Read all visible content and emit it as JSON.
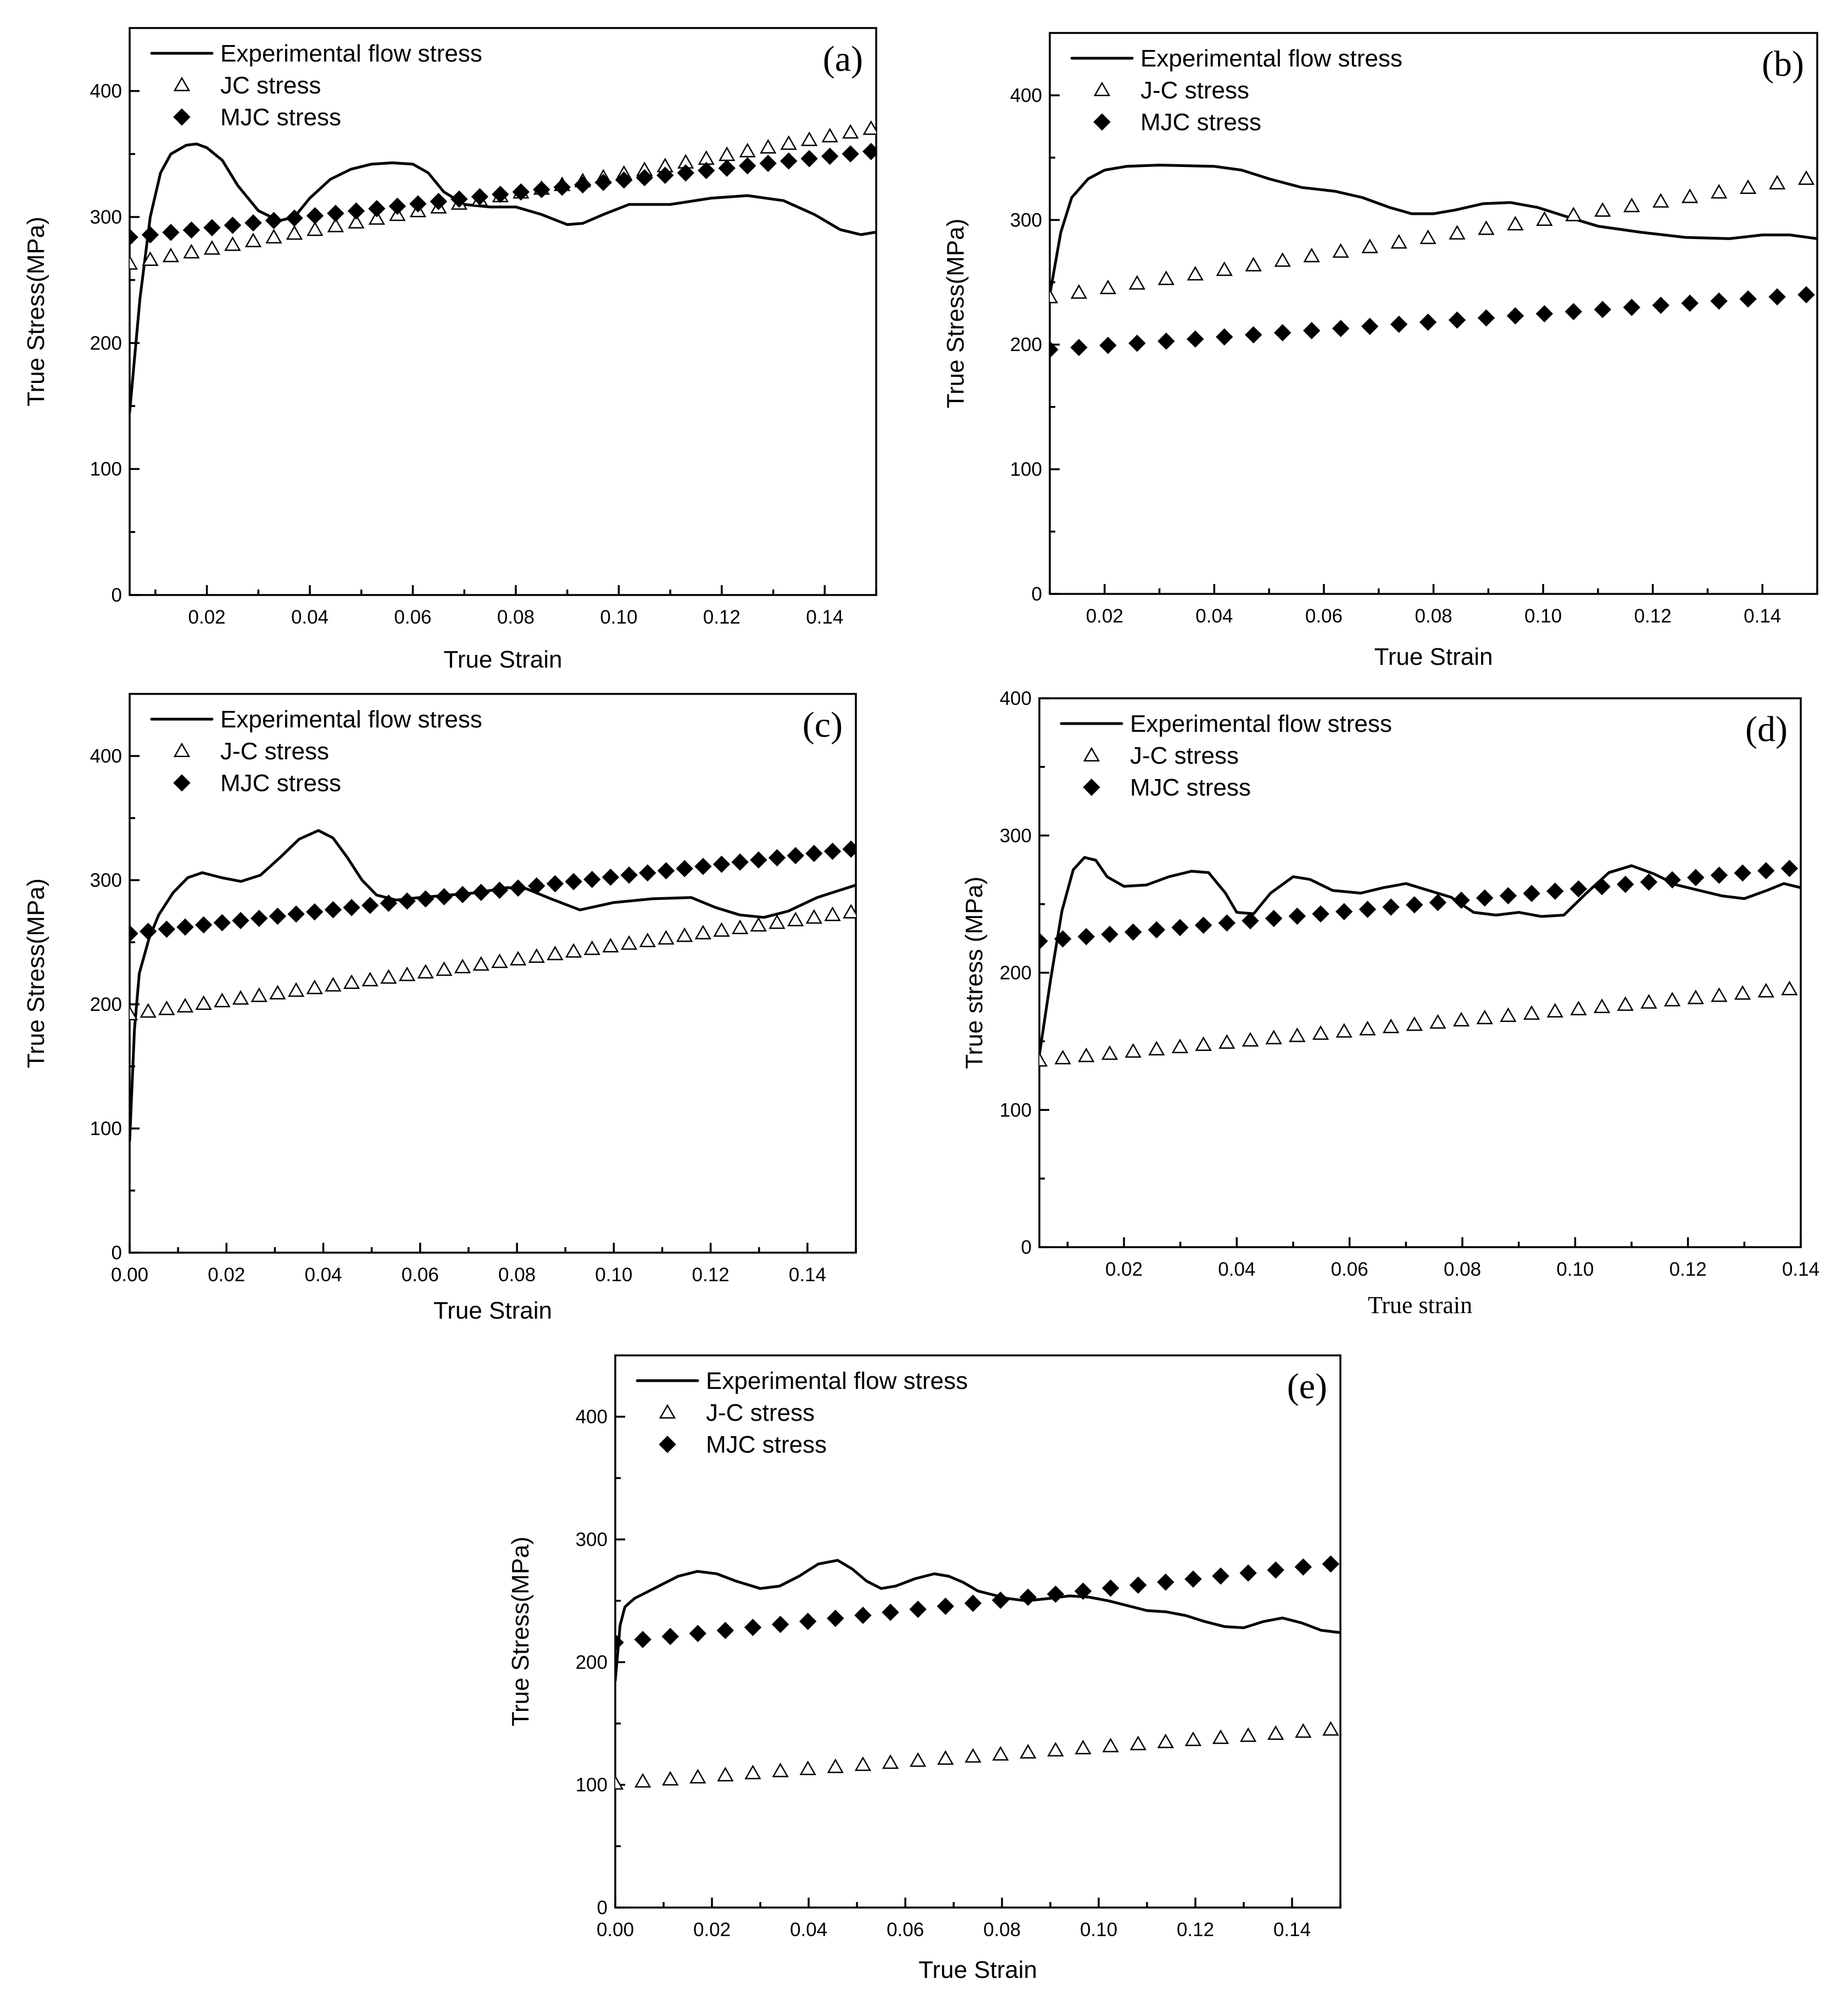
{
  "chart_data": [
    {
      "type": "line",
      "panel": "(a)",
      "xlabel": "True Strain",
      "ylabel": "True Stress(MPa)",
      "xlim": [
        0.005,
        0.15
      ],
      "ylim": [
        0,
        450
      ],
      "xticks": [
        0.02,
        0.04,
        0.06,
        0.08,
        0.1,
        0.12,
        0.14
      ],
      "yticks": [
        0,
        100,
        200,
        300,
        400
      ],
      "legend": [
        "Experimental flow stress",
        "JC stress",
        "MJC stress"
      ],
      "series": [
        {
          "name": "Experimental flow stress",
          "style": "line",
          "x": [
            0.005,
            0.007,
            0.009,
            0.011,
            0.013,
            0.016,
            0.018,
            0.02,
            0.023,
            0.026,
            0.03,
            0.034,
            0.037,
            0.04,
            0.044,
            0.048,
            0.052,
            0.056,
            0.06,
            0.063,
            0.066,
            0.07,
            0.075,
            0.08,
            0.085,
            0.09,
            0.093,
            0.097,
            0.102,
            0.11,
            0.118,
            0.125,
            0.132,
            0.138,
            0.143,
            0.147,
            0.15
          ],
          "y": [
            145,
            235,
            300,
            335,
            350,
            357,
            358,
            355,
            345,
            325,
            305,
            297,
            300,
            315,
            330,
            338,
            342,
            343,
            342,
            335,
            320,
            310,
            308,
            308,
            302,
            294,
            295,
            302,
            310,
            310,
            315,
            317,
            313,
            302,
            290,
            286,
            288
          ]
        },
        {
          "name": "JC stress",
          "style": "open-triangle",
          "x_start": 0.005,
          "x_end": 0.149,
          "n": 37,
          "y_start": 263,
          "y_end": 370
        },
        {
          "name": "MJC stress",
          "style": "filled-diamond",
          "x_start": 0.005,
          "x_end": 0.149,
          "n": 37,
          "y_start": 284,
          "y_end": 352
        }
      ]
    },
    {
      "type": "line",
      "panel": "(b)",
      "xlabel": "True Strain",
      "ylabel": "True Stress(MPa)",
      "xlim": [
        0.01,
        0.15
      ],
      "ylim": [
        0,
        450
      ],
      "xticks": [
        0.02,
        0.04,
        0.06,
        0.08,
        0.1,
        0.12,
        0.14
      ],
      "yticks": [
        0,
        100,
        200,
        300,
        400
      ],
      "legend": [
        "Experimental flow stress",
        "J-C stress",
        "MJC stress"
      ],
      "series": [
        {
          "name": "Experimental flow stress",
          "style": "line",
          "x": [
            0.01,
            0.012,
            0.014,
            0.017,
            0.02,
            0.024,
            0.03,
            0.04,
            0.045,
            0.05,
            0.056,
            0.062,
            0.067,
            0.072,
            0.076,
            0.08,
            0.084,
            0.089,
            0.094,
            0.099,
            0.104,
            0.11,
            0.118,
            0.126,
            0.134,
            0.14,
            0.145,
            0.15
          ],
          "y": [
            240,
            290,
            318,
            333,
            340,
            343,
            344,
            343,
            340,
            333,
            326,
            323,
            318,
            310,
            305,
            305,
            308,
            313,
            314,
            310,
            303,
            295,
            290,
            286,
            285,
            288,
            288,
            285
          ]
        },
        {
          "name": "J-C stress",
          "style": "open-triangle",
          "x_start": 0.01,
          "x_end": 0.148,
          "n": 27,
          "y_start": 238,
          "y_end": 333
        },
        {
          "name": "MJC stress",
          "style": "filled-diamond",
          "x_start": 0.01,
          "x_end": 0.148,
          "n": 27,
          "y_start": 196,
          "y_end": 240
        }
      ]
    },
    {
      "type": "line",
      "panel": "(c)",
      "xlabel": "True Strain",
      "ylabel": "True Stress(MPa)",
      "xlim": [
        0.0,
        0.15
      ],
      "ylim": [
        0,
        450
      ],
      "xticks": [
        0.0,
        0.02,
        0.04,
        0.06,
        0.08,
        0.1,
        0.12,
        0.14
      ],
      "yticks": [
        0,
        100,
        200,
        300,
        400
      ],
      "legend": [
        "Experimental flow stress",
        "J-C stress",
        "MJC stress"
      ],
      "series": [
        {
          "name": "Experimental flow stress",
          "style": "line",
          "x": [
            0.0,
            0.001,
            0.002,
            0.004,
            0.006,
            0.009,
            0.012,
            0.015,
            0.019,
            0.023,
            0.027,
            0.031,
            0.035,
            0.039,
            0.042,
            0.045,
            0.048,
            0.051,
            0.055,
            0.06,
            0.066,
            0.072,
            0.078,
            0.082,
            0.087,
            0.093,
            0.1,
            0.108,
            0.116,
            0.121,
            0.126,
            0.131,
            0.136,
            0.142,
            0.146,
            0.15
          ],
          "y": [
            90,
            180,
            225,
            253,
            272,
            290,
            302,
            306,
            302,
            299,
            304,
            318,
            333,
            340,
            334,
            318,
            300,
            288,
            284,
            286,
            288,
            290,
            294,
            293,
            285,
            276,
            282,
            285,
            286,
            278,
            272,
            270,
            275,
            286,
            291,
            296
          ]
        },
        {
          "name": "J-C stress",
          "style": "open-triangle",
          "x_start": 0.0,
          "x_end": 0.149,
          "n": 40,
          "y_start": 192,
          "y_end": 274
        },
        {
          "name": "MJC stress",
          "style": "filled-diamond",
          "x_start": 0.0,
          "x_end": 0.149,
          "n": 40,
          "y_start": 257,
          "y_end": 325
        }
      ]
    },
    {
      "type": "line",
      "panel": "(d)",
      "xlabel": "True strain",
      "ylabel": "True stress (MPa)",
      "xlim": [
        0.005,
        0.14
      ],
      "ylim": [
        0,
        400
      ],
      "xticks": [
        0.02,
        0.04,
        0.06,
        0.08,
        0.1,
        0.12,
        0.14
      ],
      "yticks": [
        0,
        100,
        200,
        300,
        400
      ],
      "legend": [
        "Experimental flow stress",
        "J-C stress",
        "MJC stress"
      ],
      "series": [
        {
          "name": "Experimental flow stress",
          "style": "line",
          "x": [
            0.005,
            0.007,
            0.009,
            0.011,
            0.013,
            0.015,
            0.017,
            0.02,
            0.024,
            0.028,
            0.032,
            0.035,
            0.038,
            0.04,
            0.043,
            0.046,
            0.05,
            0.053,
            0.057,
            0.062,
            0.066,
            0.07,
            0.074,
            0.078,
            0.082,
            0.086,
            0.09,
            0.094,
            0.098,
            0.102,
            0.106,
            0.11,
            0.114,
            0.118,
            0.122,
            0.126,
            0.13,
            0.134,
            0.137,
            0.14
          ],
          "y": [
            140,
            195,
            245,
            275,
            284,
            282,
            270,
            263,
            264,
            270,
            274,
            273,
            258,
            244,
            243,
            258,
            270,
            268,
            260,
            258,
            262,
            265,
            260,
            255,
            244,
            242,
            244,
            241,
            242,
            258,
            273,
            278,
            272,
            264,
            260,
            256,
            254,
            260,
            265,
            262
          ]
        },
        {
          "name": "J-C stress",
          "style": "open-triangle",
          "x_start": 0.005,
          "x_end": 0.138,
          "n": 33,
          "y_start": 136,
          "y_end": 188
        },
        {
          "name": "MJC stress",
          "style": "filled-diamond",
          "x_start": 0.005,
          "x_end": 0.138,
          "n": 33,
          "y_start": 223,
          "y_end": 276
        }
      ]
    },
    {
      "type": "line",
      "panel": "(e)",
      "xlabel": "True Strain",
      "ylabel": "True Stress(MPa)",
      "xlim": [
        0.0,
        0.15
      ],
      "ylim": [
        0,
        450
      ],
      "xticks": [
        0.0,
        0.02,
        0.04,
        0.06,
        0.08,
        0.1,
        0.12,
        0.14
      ],
      "yticks": [
        0,
        100,
        200,
        300,
        400
      ],
      "legend": [
        "Experimental flow stress",
        "J-C stress",
        "MJC stress"
      ],
      "series": [
        {
          "name": "Experimental flow stress",
          "style": "line",
          "x": [
            0.0,
            0.001,
            0.002,
            0.004,
            0.006,
            0.009,
            0.013,
            0.017,
            0.021,
            0.025,
            0.03,
            0.034,
            0.038,
            0.042,
            0.046,
            0.049,
            0.052,
            0.055,
            0.058,
            0.062,
            0.066,
            0.069,
            0.072,
            0.075,
            0.078,
            0.081,
            0.085,
            0.09,
            0.094,
            0.098,
            0.102,
            0.106,
            0.11,
            0.114,
            0.118,
            0.122,
            0.126,
            0.13,
            0.134,
            0.138,
            0.142,
            0.146,
            0.15
          ],
          "y": [
            185,
            230,
            245,
            252,
            256,
            262,
            270,
            274,
            272,
            266,
            260,
            262,
            270,
            280,
            283,
            276,
            266,
            260,
            262,
            268,
            272,
            270,
            265,
            258,
            255,
            252,
            250,
            252,
            254,
            253,
            250,
            246,
            242,
            241,
            238,
            233,
            229,
            228,
            233,
            236,
            232,
            226,
            224
          ]
        },
        {
          "name": "J-C stress",
          "style": "open-triangle",
          "x_start": 0.0,
          "x_end": 0.148,
          "n": 27,
          "y_start": 101,
          "y_end": 145
        },
        {
          "name": "MJC stress",
          "style": "filled-diamond",
          "x_start": 0.0,
          "x_end": 0.148,
          "n": 27,
          "y_start": 216,
          "y_end": 280
        }
      ]
    }
  ]
}
